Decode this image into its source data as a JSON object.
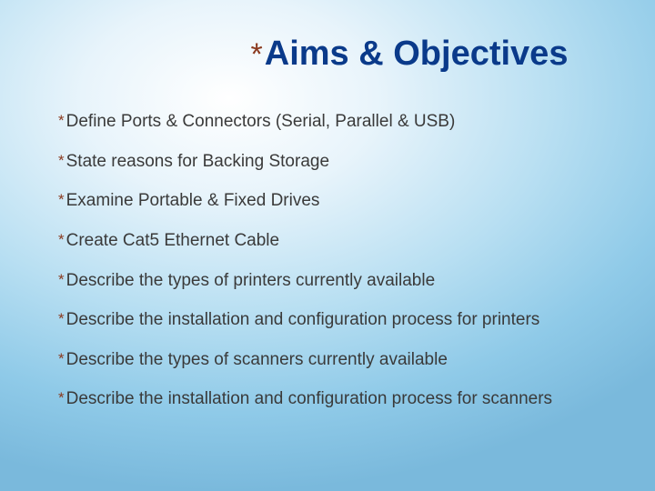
{
  "slide": {
    "title": "Aims & Objectives",
    "title_color": "#0a3a8a",
    "title_fontsize": 38,
    "bullet_marker": "*",
    "bullet_marker_color": "#8b3a1f",
    "body_text_color": "#3a3a3a",
    "body_fontsize": 19,
    "background_gradient": {
      "type": "radial",
      "center": "35% 20%",
      "stops": [
        "#ffffff",
        "#e8f4fb",
        "#b8dff2",
        "#8fcae8",
        "#7ab9dc"
      ]
    },
    "items": [
      "Define Ports & Connectors (Serial, Parallel & USB)",
      "State reasons for Backing Storage",
      "Examine Portable & Fixed Drives",
      "Create Cat5 Ethernet Cable",
      "Describe the types of printers currently available",
      "Describe the installation and configuration process for printers",
      "Describe the types of scanners currently available",
      "Describe the installation and configuration process for scanners"
    ]
  }
}
